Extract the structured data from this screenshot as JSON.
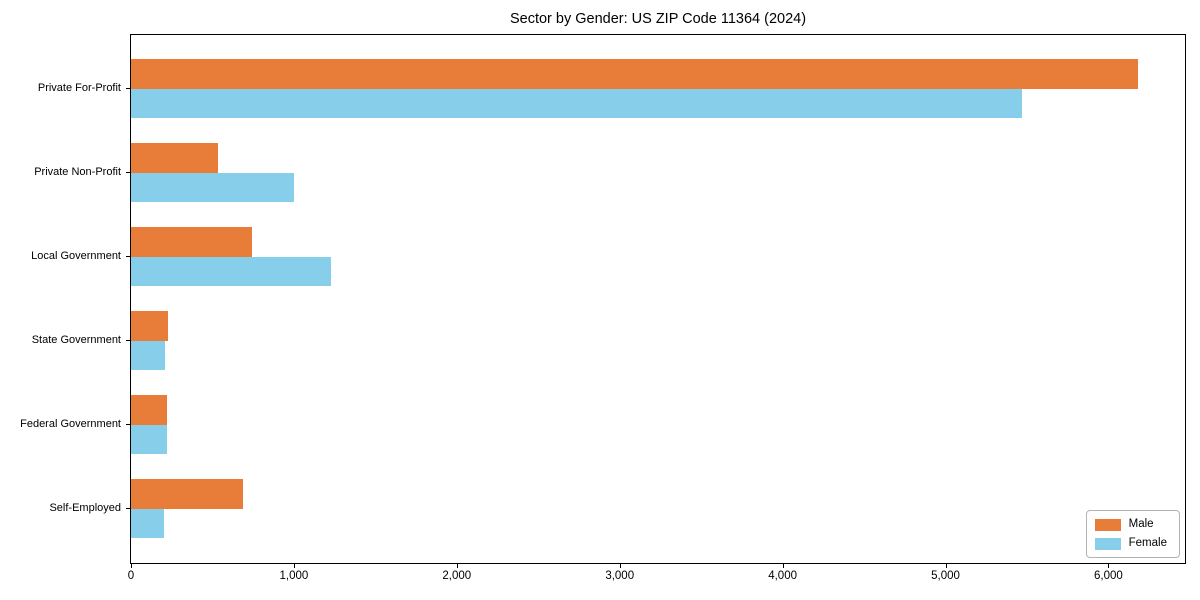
{
  "chart_data": {
    "type": "bar",
    "orientation": "horizontal",
    "title": "Sector by Gender: US ZIP Code 11364 (2024)",
    "categories": [
      "Private For-Profit",
      "Private Non-Profit",
      "Local Government",
      "State Government",
      "Federal Government",
      "Self-Employed"
    ],
    "series": [
      {
        "name": "Male",
        "color": "#e87d3a",
        "values": [
          6180,
          535,
          740,
          225,
          220,
          690
        ]
      },
      {
        "name": "Female",
        "color": "#87ceeb",
        "values": [
          5470,
          1000,
          1230,
          210,
          220,
          205
        ]
      }
    ],
    "xlabel": "",
    "ylabel": "",
    "xlim": [
      0,
      6470
    ],
    "x_ticks": [
      0,
      1000,
      2000,
      3000,
      4000,
      5000,
      6000
    ],
    "x_tick_labels": [
      "0",
      "1,000",
      "2,000",
      "3,000",
      "4,000",
      "5,000",
      "6,000"
    ],
    "grid": false,
    "legend_position": "lower right",
    "background_color": "#ffffff",
    "spine_color": "#000000"
  }
}
